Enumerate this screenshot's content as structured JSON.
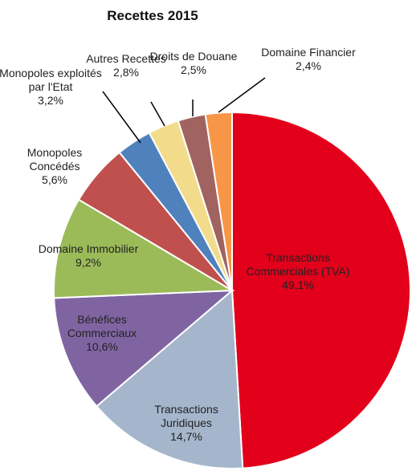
{
  "chart_data": {
    "type": "pie",
    "title": "Recettes 2015",
    "categories": [
      "Transactions Commerciales (TVA)",
      "Transactions Juridiques",
      "Bénéfices Commerciaux",
      "Domaine Immobilier",
      "Monopoles Concédés",
      "Monopoles exploités par l'Etat",
      "Autres Recettes",
      "Droits de Douane",
      "Domaine Financier"
    ],
    "values": [
      49.1,
      14.7,
      10.6,
      9.2,
      5.6,
      3.2,
      2.8,
      2.5,
      2.4
    ],
    "value_labels": [
      "49,1%",
      "14,7%",
      "10,6%",
      "9,2%",
      "5,6%",
      "3,2%",
      "2,8%",
      "2,5%",
      "2,4%"
    ],
    "colors": [
      "#e2001a",
      "#a5b6cc",
      "#8064a2",
      "#9bbb59",
      "#c0504d",
      "#4f81bd",
      "#f2dc8b",
      "#a0635f",
      "#f79646"
    ]
  }
}
